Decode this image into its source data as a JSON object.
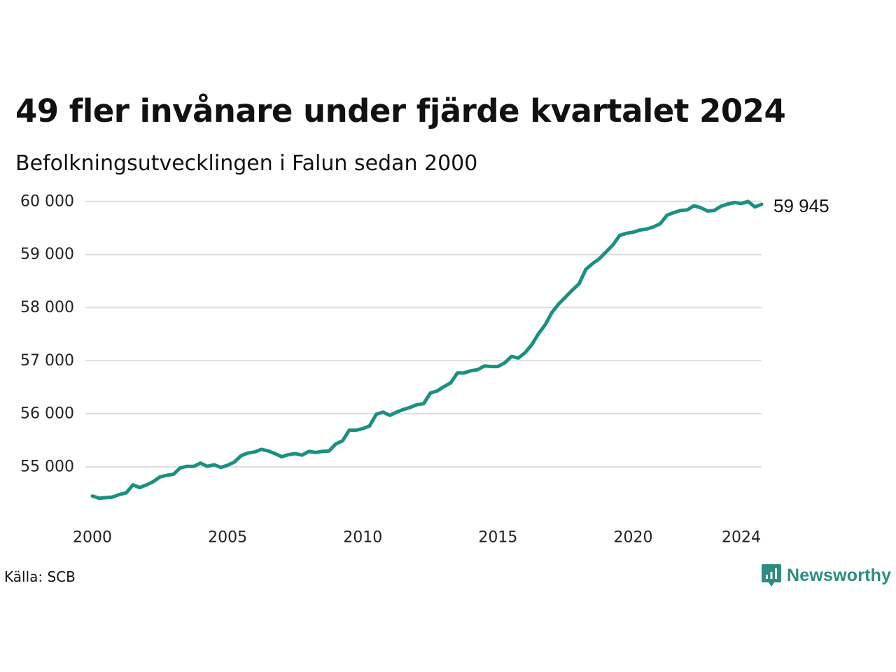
{
  "title": "49 fler invånare under fjärde kvartalet 2024",
  "subtitle": "Befolkningsutvecklingen i Falun sedan 2000",
  "source": "Källa: SCB",
  "brand": {
    "name": "Newsworthy",
    "icon": "newsworthy-logo-icon",
    "color": "#2f8c80"
  },
  "chart_data": {
    "type": "line",
    "title": "49 fler invånare under fjärde kvartalet 2024",
    "subtitle": "Befolkningsutvecklingen i Falun sedan 2000",
    "xlabel": "",
    "ylabel": "",
    "ylim": [
      54300,
      60300
    ],
    "y_ticks": [
      55000,
      56000,
      57000,
      58000,
      59000,
      60000
    ],
    "y_tick_labels": [
      "55 000",
      "56 000",
      "57 000",
      "58 000",
      "59 000",
      "60 000"
    ],
    "x_ticks": [
      "2000",
      "2005",
      "2010",
      "2015",
      "2020",
      "2024"
    ],
    "grid": "horizontal",
    "line_color": "#1a9180",
    "end_label": "59 945",
    "series": [
      {
        "x": [
          "2000 Q1",
          "2000 Q2",
          "2000 Q3",
          "2000 Q4",
          "2001 Q1",
          "2001 Q2",
          "2001 Q3",
          "2001 Q4",
          "2002 Q1",
          "2002 Q2",
          "2002 Q3",
          "2002 Q4",
          "2003 Q1",
          "2003 Q2",
          "2003 Q3",
          "2003 Q4",
          "2004 Q1",
          "2004 Q2",
          "2004 Q3",
          "2004 Q4",
          "2005 Q1",
          "2005 Q2",
          "2005 Q3",
          "2005 Q4",
          "2006 Q1",
          "2006 Q2",
          "2006 Q3",
          "2006 Q4",
          "2007 Q1",
          "2007 Q2",
          "2007 Q3",
          "2007 Q4",
          "2008 Q1",
          "2008 Q2",
          "2008 Q3",
          "2008 Q4",
          "2009 Q1",
          "2009 Q2",
          "2009 Q3",
          "2009 Q4",
          "2010 Q1",
          "2010 Q2",
          "2010 Q3",
          "2010 Q4",
          "2011 Q1",
          "2011 Q2",
          "2011 Q3",
          "2011 Q4",
          "2012 Q1",
          "2012 Q2",
          "2012 Q3",
          "2012 Q4",
          "2013 Q1",
          "2013 Q2",
          "2013 Q3",
          "2013 Q4",
          "2014 Q1",
          "2014 Q2",
          "2014 Q3",
          "2014 Q4",
          "2015 Q1",
          "2015 Q2",
          "2015 Q3",
          "2015 Q4",
          "2016 Q1",
          "2016 Q2",
          "2016 Q3",
          "2016 Q4",
          "2017 Q1",
          "2017 Q2",
          "2017 Q3",
          "2017 Q4",
          "2018 Q1",
          "2018 Q2",
          "2018 Q3",
          "2018 Q4",
          "2019 Q1",
          "2019 Q2",
          "2019 Q3",
          "2019 Q4",
          "2020 Q1",
          "2020 Q2",
          "2020 Q3",
          "2020 Q4",
          "2021 Q1",
          "2021 Q2",
          "2021 Q3",
          "2021 Q4",
          "2022 Q1",
          "2022 Q2",
          "2022 Q3",
          "2022 Q4",
          "2023 Q1",
          "2023 Q2",
          "2023 Q3",
          "2023 Q4",
          "2024 Q1",
          "2024 Q2",
          "2024 Q3",
          "2024 Q4"
        ],
        "values": [
          54450,
          54410,
          54420,
          54430,
          54480,
          54510,
          54660,
          54610,
          54660,
          54720,
          54810,
          54840,
          54860,
          54980,
          55010,
          55010,
          55070,
          55010,
          55040,
          54990,
          55030,
          55090,
          55210,
          55260,
          55280,
          55330,
          55300,
          55250,
          55190,
          55230,
          55250,
          55220,
          55290,
          55270,
          55290,
          55300,
          55430,
          55490,
          55690,
          55690,
          55720,
          55770,
          55990,
          56030,
          55970,
          56030,
          56080,
          56120,
          56170,
          56190,
          56390,
          56430,
          56510,
          56580,
          56770,
          56770,
          56810,
          56830,
          56900,
          56890,
          56890,
          56960,
          57080,
          57050,
          57150,
          57300,
          57510,
          57680,
          57910,
          58070,
          58200,
          58330,
          58450,
          58720,
          58830,
          58920,
          59050,
          59180,
          59360,
          59400,
          59420,
          59460,
          59480,
          59520,
          59580,
          59740,
          59790,
          59830,
          59840,
          59920,
          59880,
          59820,
          59830,
          59910,
          59950,
          59980,
          59960,
          60000,
          59896,
          59945
        ]
      }
    ]
  }
}
